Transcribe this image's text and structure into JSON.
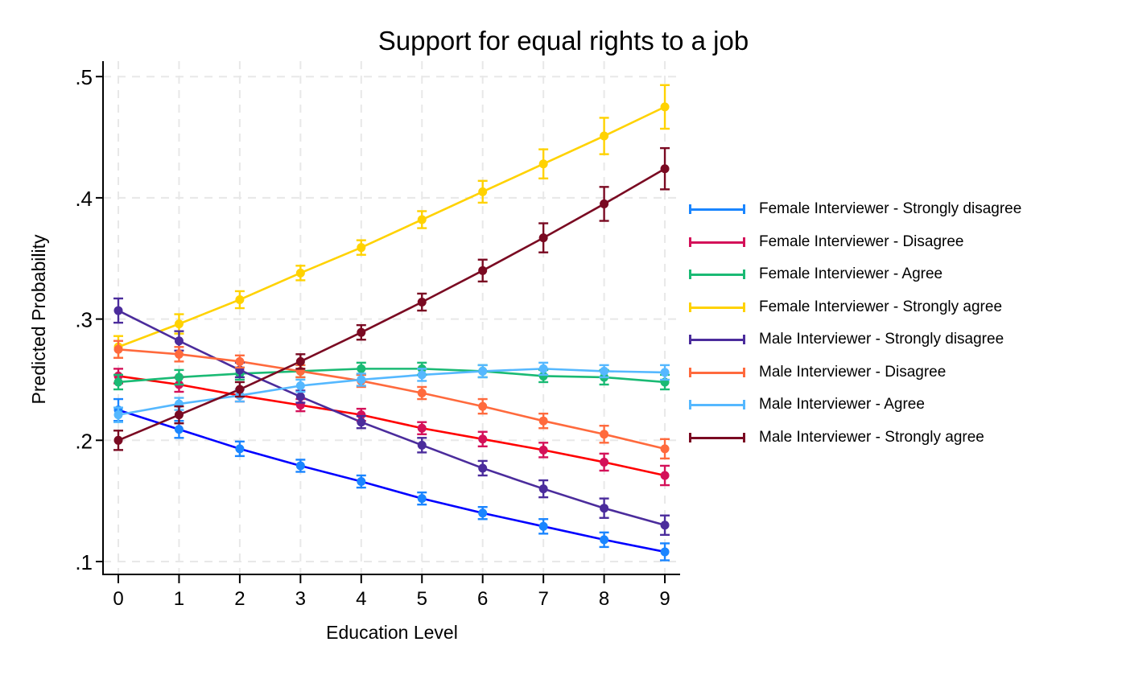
{
  "chart_data": {
    "type": "line",
    "title": "Support for equal rights to a job",
    "xlabel": "Education Level",
    "ylabel": "Predicted Probability",
    "x": [
      0,
      1,
      2,
      3,
      4,
      5,
      6,
      7,
      8,
      9
    ],
    "xticks": [
      "0",
      "1",
      "2",
      "3",
      "4",
      "5",
      "6",
      "7",
      "8",
      "9"
    ],
    "yticks": [
      0.1,
      0.2,
      0.3,
      0.4,
      0.5
    ],
    "ytick_labels": [
      ".1",
      ".2",
      ".3",
      ".4",
      ".5"
    ],
    "ylim": [
      0.089,
      0.511
    ],
    "xlim": [
      -0.25,
      9.25
    ],
    "grid": true,
    "error_bars": "95% confidence intervals (capped)",
    "legend_position": "right",
    "series": [
      {
        "name": "Female Interviewer - Strongly disagree",
        "line_color": "#0000ff",
        "marker_color": "#1a85ff",
        "values": [
          0.225,
          0.209,
          0.193,
          0.179,
          0.166,
          0.152,
          0.14,
          0.129,
          0.118,
          0.108
        ],
        "ci": [
          0.009,
          0.007,
          0.006,
          0.005,
          0.005,
          0.005,
          0.005,
          0.006,
          0.006,
          0.007
        ]
      },
      {
        "name": "Female Interviewer - Disagree",
        "line_color": "#ff0000",
        "marker_color": "#d41159",
        "values": [
          0.253,
          0.246,
          0.237,
          0.229,
          0.221,
          0.21,
          0.201,
          0.192,
          0.182,
          0.171
        ],
        "ci": [
          0.006,
          0.006,
          0.005,
          0.005,
          0.005,
          0.005,
          0.006,
          0.006,
          0.007,
          0.008
        ]
      },
      {
        "name": "Female Interviewer - Agree",
        "line_color": "#1aba74",
        "marker_color": "#1aba74",
        "values": [
          0.248,
          0.252,
          0.255,
          0.257,
          0.259,
          0.259,
          0.257,
          0.253,
          0.252,
          0.248
        ],
        "ci": [
          0.006,
          0.006,
          0.005,
          0.005,
          0.005,
          0.005,
          0.005,
          0.005,
          0.006,
          0.006
        ]
      },
      {
        "name": "Female Interviewer - Strongly agree",
        "line_color": "#ffd200",
        "marker_color": "#ffd200",
        "values": [
          0.277,
          0.296,
          0.316,
          0.338,
          0.359,
          0.382,
          0.405,
          0.428,
          0.451,
          0.475
        ],
        "ci": [
          0.009,
          0.008,
          0.007,
          0.006,
          0.006,
          0.007,
          0.009,
          0.012,
          0.015,
          0.018
        ]
      },
      {
        "name": "Male Interviewer - Strongly disagree",
        "line_color": "#4b2c9c",
        "marker_color": "#4b2c9c",
        "values": [
          0.307,
          0.282,
          0.258,
          0.236,
          0.215,
          0.196,
          0.177,
          0.16,
          0.144,
          0.13
        ],
        "ci": [
          0.01,
          0.008,
          0.006,
          0.005,
          0.005,
          0.006,
          0.006,
          0.007,
          0.008,
          0.008
        ]
      },
      {
        "name": "Male Interviewer - Disagree",
        "line_color": "#ff6a3d",
        "marker_color": "#ff6a3d",
        "values": [
          0.275,
          0.271,
          0.265,
          0.257,
          0.249,
          0.239,
          0.228,
          0.216,
          0.205,
          0.193
        ],
        "ci": [
          0.007,
          0.006,
          0.005,
          0.005,
          0.005,
          0.005,
          0.006,
          0.006,
          0.007,
          0.008
        ]
      },
      {
        "name": "Male Interviewer - Agree",
        "line_color": "#55b8ff",
        "marker_color": "#55b8ff",
        "values": [
          0.221,
          0.23,
          0.237,
          0.245,
          0.25,
          0.254,
          0.257,
          0.259,
          0.257,
          0.256
        ],
        "ci": [
          0.006,
          0.005,
          0.005,
          0.005,
          0.005,
          0.005,
          0.005,
          0.005,
          0.005,
          0.006
        ]
      },
      {
        "name": "Male Interviewer - Strongly agree",
        "line_color": "#7a0a22",
        "marker_color": "#7a0a22",
        "values": [
          0.2,
          0.221,
          0.242,
          0.265,
          0.289,
          0.314,
          0.34,
          0.367,
          0.395,
          0.424
        ],
        "ci": [
          0.008,
          0.007,
          0.006,
          0.006,
          0.006,
          0.007,
          0.009,
          0.012,
          0.014,
          0.017
        ]
      }
    ]
  }
}
